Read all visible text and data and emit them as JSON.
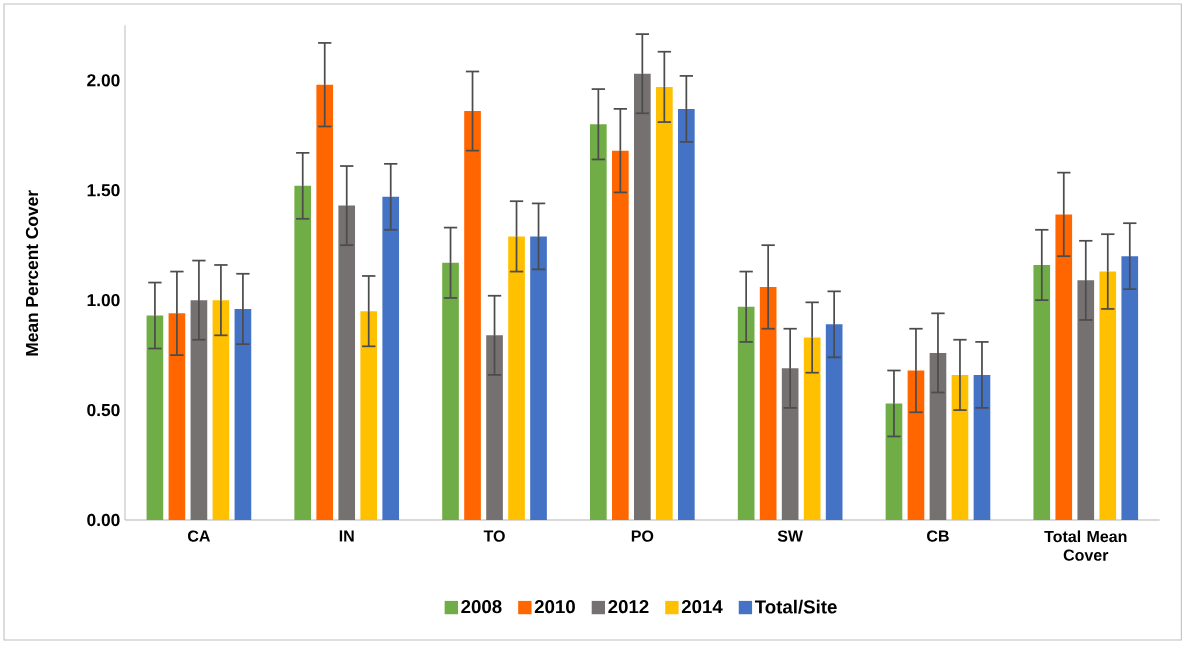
{
  "chart_data": {
    "type": "bar",
    "ylabel": "Mean Percent Cover",
    "categories": [
      "CA",
      "IN",
      "TO",
      "PO",
      "SW",
      "CB",
      "Total Mean Cover"
    ],
    "ylim": [
      0,
      2.25
    ],
    "yticks": [
      {
        "value": 0,
        "label": "0.00"
      },
      {
        "value": 0.5,
        "label": "0.50"
      },
      {
        "value": 1,
        "label": "1.00"
      },
      {
        "value": 1.5,
        "label": "1.50"
      },
      {
        "value": 2,
        "label": "2.00"
      }
    ],
    "legend": "bottom",
    "series": [
      {
        "name": "2008",
        "color": "#70ad47",
        "values": [
          0.93,
          1.52,
          1.17,
          1.8,
          0.97,
          0.53,
          1.16
        ],
        "errors": [
          0.15,
          0.15,
          0.16,
          0.16,
          0.16,
          0.15,
          0.16
        ]
      },
      {
        "name": "2010",
        "color": "#ff6600",
        "values": [
          0.94,
          1.98,
          1.86,
          1.68,
          1.06,
          0.68,
          1.39
        ],
        "errors": [
          0.19,
          0.19,
          0.18,
          0.19,
          0.19,
          0.19,
          0.19
        ]
      },
      {
        "name": "2012",
        "color": "#767171",
        "values": [
          1.0,
          1.43,
          0.84,
          2.03,
          0.69,
          0.76,
          1.09
        ],
        "errors": [
          0.18,
          0.18,
          0.18,
          0.18,
          0.18,
          0.18,
          0.18
        ]
      },
      {
        "name": "2014",
        "color": "#ffc000",
        "values": [
          1.0,
          0.95,
          1.29,
          1.97,
          0.83,
          0.66,
          1.13
        ],
        "errors": [
          0.16,
          0.16,
          0.16,
          0.16,
          0.16,
          0.16,
          0.17
        ]
      },
      {
        "name": "Total/Site",
        "color": "#4472c4",
        "values": [
          0.96,
          1.47,
          1.29,
          1.87,
          0.89,
          0.66,
          1.2
        ],
        "errors": [
          0.16,
          0.15,
          0.15,
          0.15,
          0.15,
          0.15,
          0.15
        ]
      }
    ]
  }
}
